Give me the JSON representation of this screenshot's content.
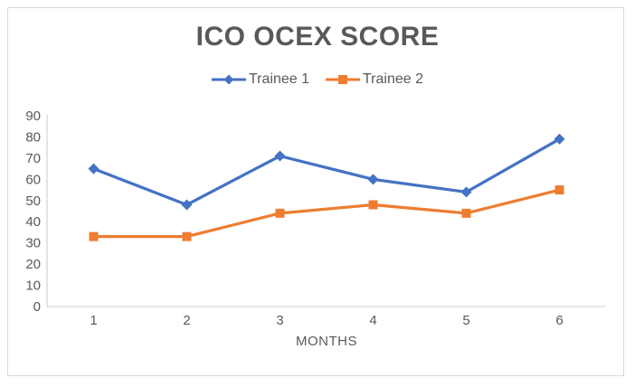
{
  "colors": {
    "text": "#595959",
    "axis": "#d6d6d6",
    "border": "#d9d9d9",
    "series_blue": "#4472C4",
    "series_orange": "#ED7D31"
  },
  "chart_data": {
    "type": "line",
    "title": "ICO OCEX SCORE",
    "xlabel": "MONTHS",
    "ylabel": "",
    "categories": [
      "1",
      "2",
      "3",
      "4",
      "5",
      "6"
    ],
    "yticks": [
      0,
      10,
      20,
      30,
      40,
      50,
      60,
      70,
      80,
      90
    ],
    "ylim": [
      0,
      90
    ],
    "grid": false,
    "legend_position": "top",
    "series": [
      {
        "name": "Trainee 1",
        "color": "#4472C4",
        "marker": "diamond",
        "values": [
          65,
          48,
          71,
          60,
          54,
          79
        ]
      },
      {
        "name": "Trainee 2",
        "color": "#ED7D31",
        "marker": "square",
        "values": [
          33,
          33,
          44,
          48,
          44,
          55
        ]
      }
    ]
  }
}
